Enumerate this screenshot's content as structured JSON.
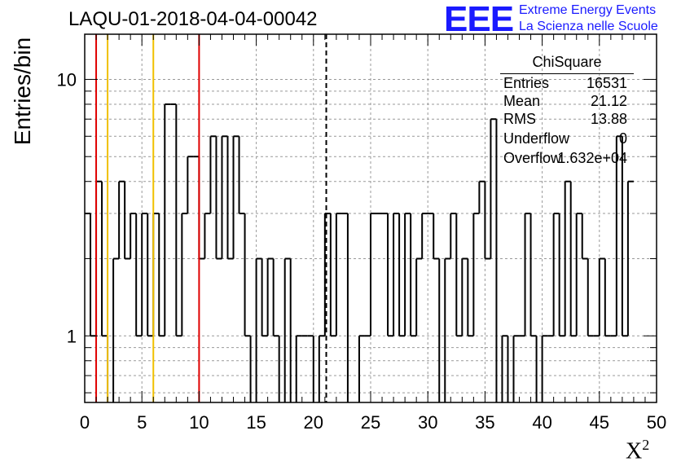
{
  "title": "LAQU-01-2018-04-04-00042",
  "logo": {
    "text": "EEE",
    "line1": "Extreme Energy Events",
    "line2": "La Scienza nelle Scuole",
    "color": "#1a1aff"
  },
  "stats": {
    "name": "ChiSquare",
    "rows": [
      {
        "key": "Entries",
        "value": "16531"
      },
      {
        "key": "Mean",
        "value": "21.12"
      },
      {
        "key": "RMS",
        "value": "13.88"
      },
      {
        "key": "Underflow",
        "value": "0"
      },
      {
        "key": "Overflow",
        "value": "1.632e+04"
      }
    ]
  },
  "chart_data": {
    "type": "histogram",
    "xlabel": "X²",
    "ylabel": "Entries/bin",
    "xlim": [
      0,
      50
    ],
    "ylim": [
      0.55,
      15
    ],
    "yscale": "log",
    "bin_width": 0.5,
    "x_ticks": [
      "0",
      "5",
      "10",
      "15",
      "20",
      "25",
      "30",
      "35",
      "40",
      "45",
      "50"
    ],
    "y_ticks": [
      "1",
      "10"
    ],
    "grid": true,
    "values": [
      3,
      1,
      4,
      1,
      0,
      2,
      4,
      2,
      3,
      1,
      3,
      1,
      3,
      1,
      8,
      8,
      1,
      3,
      5,
      5,
      2,
      3,
      6,
      2,
      6,
      2,
      6,
      3,
      1,
      0,
      2,
      1,
      2,
      1,
      0,
      2,
      0,
      1,
      1,
      1,
      0,
      1,
      3,
      1,
      3,
      3,
      0,
      0,
      1,
      1,
      3,
      3,
      3,
      1,
      3,
      1,
      3,
      1,
      2,
      3,
      3,
      2,
      0,
      2,
      3,
      1,
      2,
      1,
      3,
      4,
      2,
      7,
      0,
      1,
      0,
      1,
      1,
      3,
      1,
      0,
      1,
      1,
      3,
      1,
      4,
      1,
      3,
      2,
      1,
      1,
      2,
      1,
      1,
      6,
      1,
      4
    ],
    "vlines": [
      {
        "x": 1,
        "color": "#e00000",
        "style": "solid"
      },
      {
        "x": 2,
        "color": "#f0c000",
        "style": "solid"
      },
      {
        "x": 6,
        "color": "#f0c000",
        "style": "solid"
      },
      {
        "x": 10,
        "color": "#e00000",
        "style": "solid"
      },
      {
        "x": 21.12,
        "color": "#000000",
        "style": "dashed"
      }
    ]
  }
}
